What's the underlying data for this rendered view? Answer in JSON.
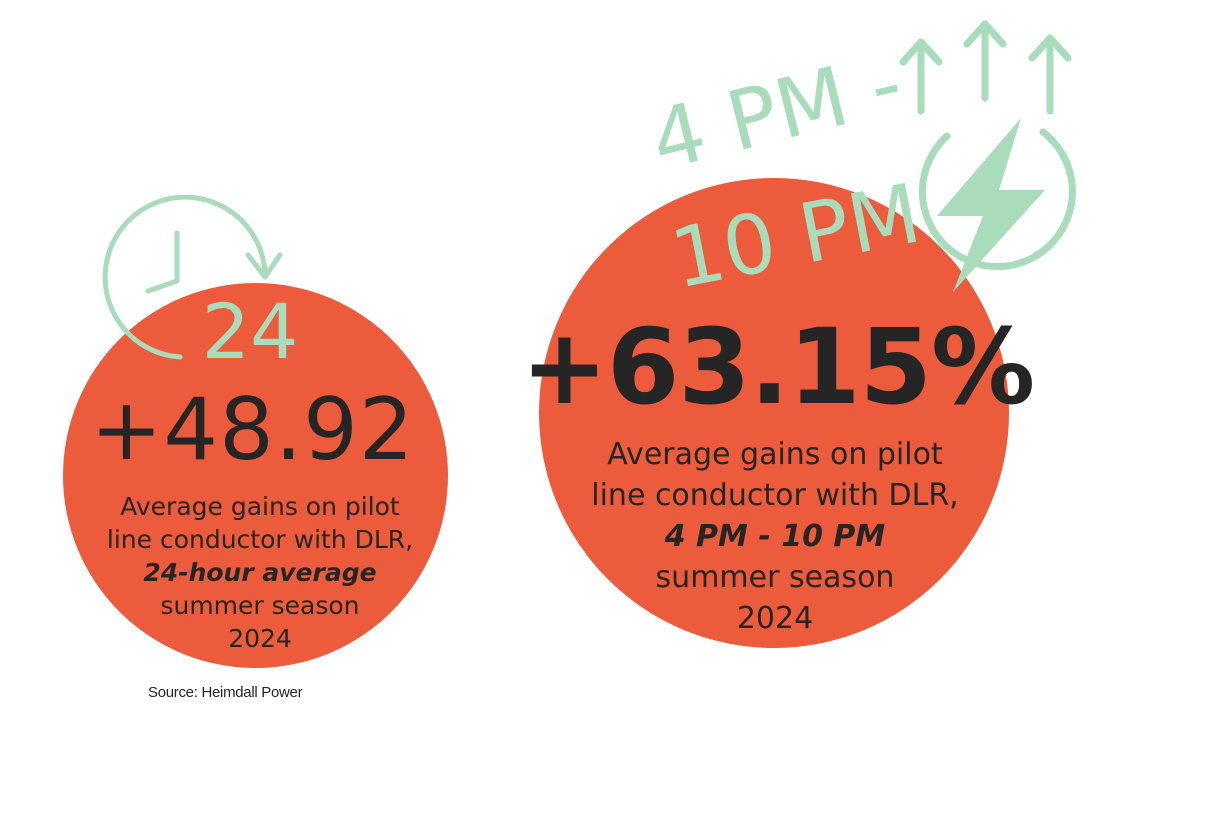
{
  "colors": {
    "circle": "#ec5b3c",
    "accent_green": "#a8dcbb",
    "text_dark": "#252525"
  },
  "left": {
    "icon": "clock-icon",
    "badge": "24",
    "value": "+48.92",
    "desc_line1": "Average gains on pilot",
    "desc_line2": "line conductor with DLR,",
    "desc_emphasis": "24-hour average",
    "desc_line4": "summer season",
    "desc_line5": "2024"
  },
  "right": {
    "icon": "lightning-bolt-icon",
    "arrows_icon": "up-arrows-icon",
    "time_top": "4 PM -",
    "time_bottom": "10 PM",
    "value": "+63.15%",
    "desc_line1": "Average gains on pilot",
    "desc_line2": "line conductor with DLR,",
    "desc_emphasis": "4 PM - 10 PM",
    "desc_line4": "summer season",
    "desc_line5": "2024"
  },
  "source": "Source: Heimdall Power"
}
